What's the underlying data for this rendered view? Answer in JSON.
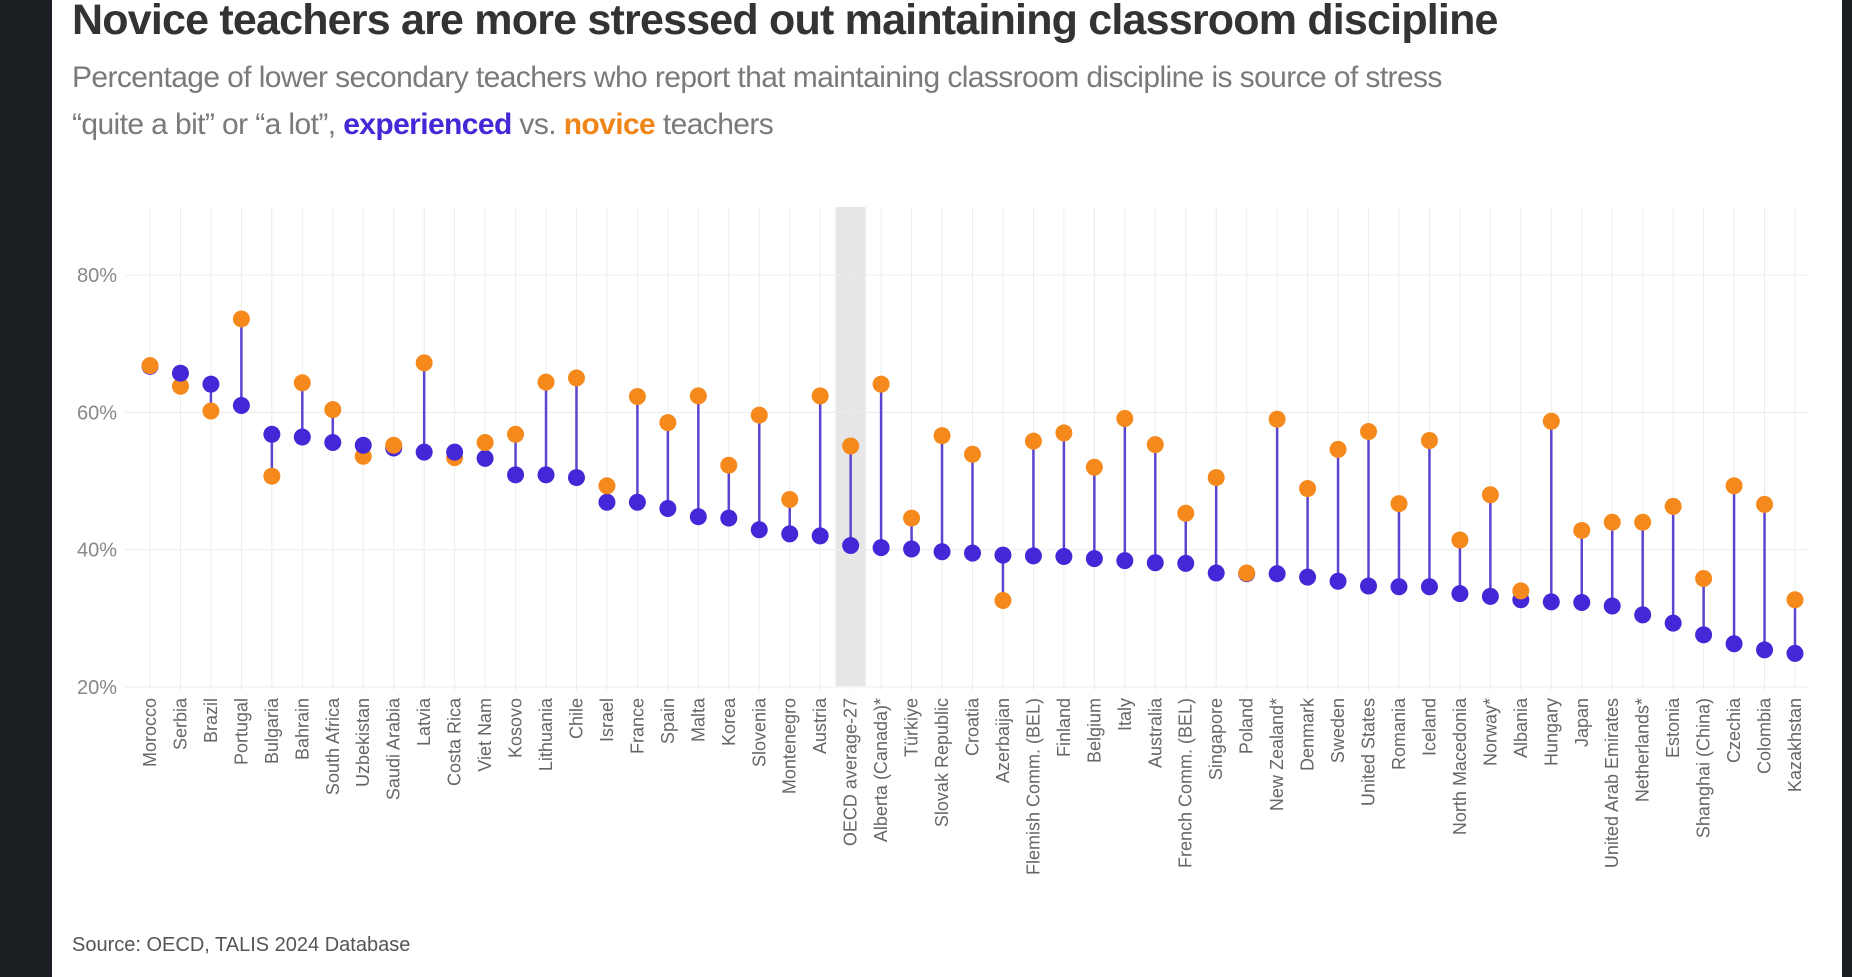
{
  "header": {
    "title": "Novice teachers are more stressed out maintaining classroom discipline",
    "subtitle_line1": "Percentage of lower secondary teachers who report that maintaining classroom discipline is source of stress",
    "subtitle_line2_prefix": "“quite a bit” or “a lot”, ",
    "subtitle_exp": "experienced",
    "subtitle_mid": " vs. ",
    "subtitle_nov": "novice",
    "subtitle_suffix": " teachers"
  },
  "footer": {
    "source": "Source: OECD, TALIS 2024 Database"
  },
  "colors": {
    "experienced": "#4427d6",
    "novice": "#f5891c",
    "stem": "#5b45d0",
    "highlight_band": "#e6e6e6"
  },
  "chart_data": {
    "type": "dumbbell",
    "title": "Novice teachers are more stressed out maintaining classroom discipline",
    "xlabel": "",
    "ylabel": "",
    "ylim": [
      17,
      90
    ],
    "yticks": [
      20,
      40,
      60,
      80
    ],
    "ytick_labels": [
      "20%",
      "40%",
      "60%",
      "80%"
    ],
    "grid": true,
    "highlight_category": "OECD average-27",
    "categories": [
      "Morocco",
      "Serbia",
      "Brazil",
      "Portugal",
      "Bulgaria",
      "Bahrain",
      "South Africa",
      "Uzbekistan",
      "Saudi Arabia",
      "Latvia",
      "Costa Rica",
      "Viet Nam",
      "Kosovo",
      "Lithuania",
      "Chile",
      "Israel",
      "France",
      "Spain",
      "Malta",
      "Korea",
      "Slovenia",
      "Montenegro",
      "Austria",
      "OECD average-27",
      "Alberta (Canada)*",
      "Türkiye",
      "Slovak Republic",
      "Croatia",
      "Azerbaijan",
      "Flemish Comm. (BEL)",
      "Finland",
      "Belgium",
      "Italy",
      "Australia",
      "French Comm. (BEL)",
      "Singapore",
      "Poland",
      "New Zealand*",
      "Denmark",
      "Sweden",
      "United States",
      "Romania",
      "Iceland",
      "North Macedonia",
      "Norway*",
      "Albania",
      "Hungary",
      "Japan",
      "United Arab Emirates",
      "Netherlands*",
      "Estonia",
      "Shanghai (China)",
      "Czechia",
      "Colombia",
      "Kazakhstan"
    ],
    "series": [
      {
        "name": "experienced",
        "values": [
          66.7,
          65.7,
          64.1,
          61.0,
          56.8,
          56.4,
          55.6,
          55.2,
          54.8,
          54.2,
          54.2,
          53.3,
          50.9,
          50.9,
          50.5,
          46.9,
          46.9,
          46.0,
          44.8,
          44.6,
          42.9,
          42.3,
          42.0,
          40.6,
          40.3,
          40.1,
          39.7,
          39.5,
          39.2,
          39.1,
          39.0,
          38.7,
          38.4,
          38.1,
          38.0,
          36.6,
          36.5,
          36.5,
          36.0,
          35.4,
          34.7,
          34.6,
          34.6,
          33.6,
          33.2,
          32.7,
          32.4,
          32.3,
          31.8,
          30.5,
          29.3,
          27.6,
          26.3,
          25.4,
          24.9
        ]
      },
      {
        "name": "novice",
        "values": [
          66.8,
          63.8,
          60.2,
          73.6,
          50.7,
          64.3,
          60.4,
          53.6,
          55.2,
          67.2,
          53.4,
          55.6,
          56.8,
          64.4,
          65.0,
          49.3,
          62.3,
          58.5,
          62.4,
          52.3,
          59.6,
          47.3,
          62.4,
          55.1,
          64.1,
          44.6,
          56.6,
          53.9,
          32.6,
          55.8,
          57.0,
          52.0,
          59.1,
          55.3,
          45.3,
          50.5,
          36.6,
          59.0,
          48.9,
          54.6,
          57.2,
          46.7,
          55.9,
          41.4,
          48.0,
          34.0,
          58.7,
          42.8,
          44.0,
          44.0,
          46.3,
          35.8,
          49.3,
          46.6,
          32.7
        ]
      }
    ]
  }
}
